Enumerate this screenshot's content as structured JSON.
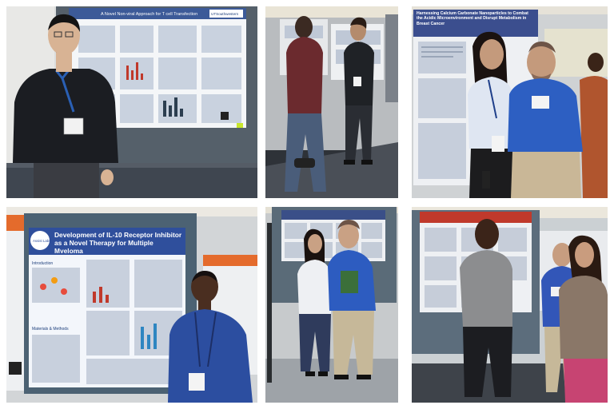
{
  "collage": {
    "photo1": {
      "poster_title": "A Novel Non-viral Approach for T cell Transfection",
      "poster_logo": "UTSouthwestern"
    },
    "photo3": {
      "poster_title": "Harnessing Calcium Carbonate Nanoparticles to Combat the Acidic Microenvironment and Disrupt Metabolism in Breast Cancer"
    },
    "photo4": {
      "poster_title": "Development of IL-10 Receptor Inhibitor as a Novel Therapy for Multiple Myeloma",
      "poster_logo": "Assist Labs",
      "section_introduction": "Introduction",
      "section_materials": "Materials & Methods"
    }
  }
}
